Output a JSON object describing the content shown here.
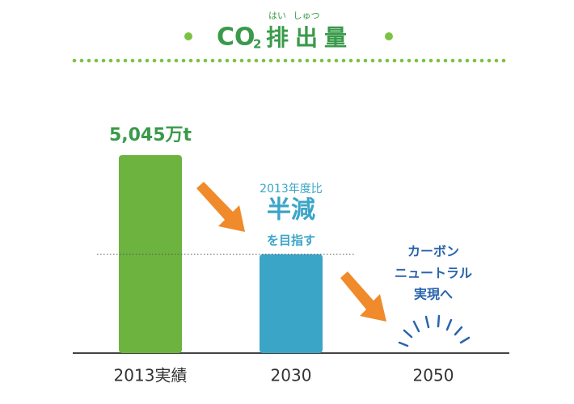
{
  "chart_data": {
    "type": "bar",
    "title": {
      "text": "CO",
      "sub": "2",
      "kanji": [
        "排",
        "出",
        "量"
      ],
      "ruby": [
        "はい",
        "しゅつ"
      ]
    },
    "categories": [
      "2013実績",
      "2030",
      "2050"
    ],
    "values": [
      5045,
      2520,
      0
    ],
    "value_labels": [
      "5,045万t",
      null,
      null
    ],
    "colors": [
      "#6cb33f",
      "#3ba5c8",
      "#3ba5c8"
    ],
    "annotations": {
      "reduction": [
        "2013年度比",
        "半減",
        "を目指す"
      ],
      "goal": [
        "カーボン",
        "ニュートラル",
        "実現へ"
      ]
    }
  }
}
